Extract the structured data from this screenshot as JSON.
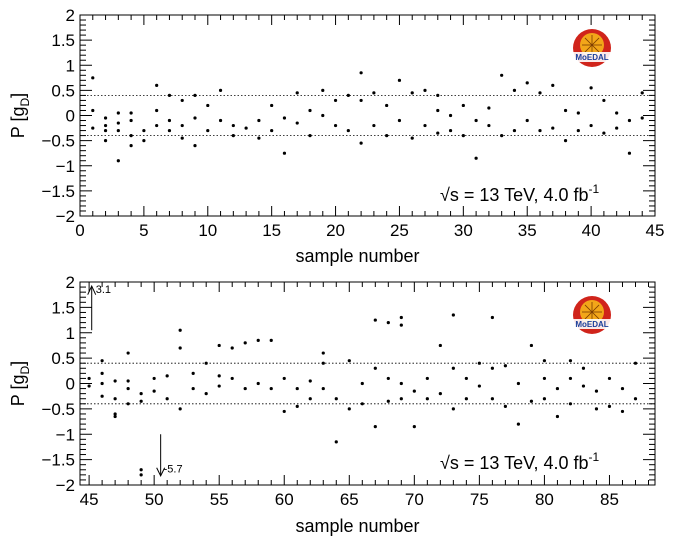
{
  "chart_data": [
    {
      "type": "scatter",
      "panel": "top",
      "xlabel": "sample number",
      "ylabel_main": "P [g",
      "ylabel_sub": "D",
      "ylabel_close": "]",
      "xlim": [
        0,
        45
      ],
      "ylim": [
        -2,
        2
      ],
      "xticks": [
        0,
        5,
        10,
        15,
        20,
        25,
        30,
        35,
        40,
        45
      ],
      "yticks": [
        -2,
        -1.5,
        -1,
        -0.5,
        0,
        0.5,
        1,
        1.5,
        2
      ],
      "ytick_labels": [
        "−2",
        "−1.5",
        "−1",
        "−0.5",
        "0",
        "0.5",
        "1",
        "1.5",
        "2"
      ],
      "reference_lines": [
        0.4,
        -0.4
      ],
      "annotation": {
        "sqrt": "√",
        "s_text": "s = 13 TeV, 4.0 fb",
        "sup": "-1"
      },
      "logo_text": "MoEDAL",
      "points": [
        [
          1,
          0.75
        ],
        [
          1,
          0.1
        ],
        [
          1,
          -0.25
        ],
        [
          2,
          -0.05
        ],
        [
          2,
          -0.3
        ],
        [
          2,
          -0.5
        ],
        [
          2,
          -0.2
        ],
        [
          3,
          0.05
        ],
        [
          3,
          -0.15
        ],
        [
          3,
          -0.3
        ],
        [
          3,
          -0.9
        ],
        [
          4,
          0.05
        ],
        [
          4,
          -0.1
        ],
        [
          4,
          -0.4
        ],
        [
          4,
          -0.6
        ],
        [
          5,
          -0.3
        ],
        [
          5,
          -0.5
        ],
        [
          6,
          0.6
        ],
        [
          6,
          0.1
        ],
        [
          6,
          -0.2
        ],
        [
          7,
          0.4
        ],
        [
          7,
          -0.1
        ],
        [
          7,
          -0.3
        ],
        [
          8,
          0.3
        ],
        [
          8,
          -0.2
        ],
        [
          8,
          -0.45
        ],
        [
          9,
          0.4
        ],
        [
          9,
          -0.05
        ],
        [
          9,
          -0.6
        ],
        [
          10,
          0.2
        ],
        [
          10,
          -0.3
        ],
        [
          11,
          0.5
        ],
        [
          11,
          -0.1
        ],
        [
          12,
          -0.2
        ],
        [
          12,
          -0.4
        ],
        [
          13,
          -0.25
        ],
        [
          14,
          -0.1
        ],
        [
          14,
          -0.45
        ],
        [
          15,
          0.2
        ],
        [
          15,
          -0.3
        ],
        [
          16,
          -0.05
        ],
        [
          16,
          -0.75
        ],
        [
          17,
          0.45
        ],
        [
          17,
          -0.15
        ],
        [
          18,
          0.1
        ],
        [
          18,
          -0.4
        ],
        [
          19,
          0.5
        ],
        [
          19,
          0.0
        ],
        [
          20,
          0.3
        ],
        [
          20,
          -0.2
        ],
        [
          21,
          0.4
        ],
        [
          21,
          -0.3
        ],
        [
          22,
          0.85
        ],
        [
          22,
          0.3
        ],
        [
          22,
          -0.55
        ],
        [
          23,
          0.45
        ],
        [
          23,
          -0.2
        ],
        [
          24,
          0.2
        ],
        [
          24,
          -0.4
        ],
        [
          25,
          0.7
        ],
        [
          25,
          -0.1
        ],
        [
          26,
          0.45
        ],
        [
          26,
          -0.45
        ],
        [
          27,
          0.5
        ],
        [
          27,
          -0.2
        ],
        [
          28,
          0.4
        ],
        [
          28,
          0.1
        ],
        [
          28,
          -0.35
        ],
        [
          29,
          0.0
        ],
        [
          29,
          -0.3
        ],
        [
          30,
          0.2
        ],
        [
          30,
          -0.4
        ],
        [
          31,
          -0.1
        ],
        [
          31,
          -0.85
        ],
        [
          32,
          0.15
        ],
        [
          32,
          -0.2
        ],
        [
          33,
          0.8
        ],
        [
          33,
          -0.4
        ],
        [
          34,
          0.5
        ],
        [
          34,
          -0.3
        ],
        [
          35,
          0.65
        ],
        [
          35,
          -0.1
        ],
        [
          36,
          0.45
        ],
        [
          36,
          -0.3
        ],
        [
          37,
          0.6
        ],
        [
          37,
          -0.25
        ],
        [
          38,
          0.1
        ],
        [
          38,
          -0.5
        ],
        [
          39,
          0.05
        ],
        [
          39,
          -0.3
        ],
        [
          40,
          0.55
        ],
        [
          40,
          -0.2
        ],
        [
          41,
          0.3
        ],
        [
          41,
          -0.35
        ],
        [
          42,
          0.05
        ],
        [
          42,
          -0.25
        ],
        [
          43,
          -0.1
        ],
        [
          43,
          -0.75
        ],
        [
          44,
          0.45
        ],
        [
          44,
          -0.05
        ]
      ]
    },
    {
      "type": "scatter",
      "panel": "bottom",
      "xlabel": "sample number",
      "ylabel_main": "P [g",
      "ylabel_sub": "D",
      "ylabel_close": "]",
      "xlim": [
        44.3,
        88.5
      ],
      "ylim": [
        -2,
        2
      ],
      "xticks": [
        45,
        50,
        55,
        60,
        65,
        70,
        75,
        80,
        85
      ],
      "yticks": [
        -2,
        -1.5,
        -1,
        -0.5,
        0,
        0.5,
        1,
        1.5,
        2
      ],
      "ytick_labels": [
        "−2",
        "−1.5",
        "−1",
        "−0.5",
        "0",
        "0.5",
        "1",
        "1.5",
        "2"
      ],
      "reference_lines": [
        0.4,
        -0.4
      ],
      "annotation": {
        "sqrt": "√",
        "s_text": "s = 13 TeV, 4.0 fb",
        "sup": "-1"
      },
      "logo_text": "MoEDAL",
      "arrow_up": {
        "x": 45.2,
        "label": "3.1"
      },
      "arrow_down": {
        "x": 50.5,
        "label": "-5.7"
      },
      "points": [
        [
          45,
          0.1
        ],
        [
          45,
          -0.05
        ],
        [
          46,
          0.45
        ],
        [
          46,
          0.2
        ],
        [
          46,
          0.0
        ],
        [
          46,
          -0.25
        ],
        [
          47,
          0.05
        ],
        [
          47,
          -0.3
        ],
        [
          47,
          -0.6
        ],
        [
          47,
          -0.65
        ],
        [
          48,
          0.05
        ],
        [
          48,
          -0.1
        ],
        [
          48,
          -0.4
        ],
        [
          48,
          0.6
        ],
        [
          49,
          -0.2
        ],
        [
          49,
          -0.35
        ],
        [
          49,
          -1.7
        ],
        [
          49,
          -1.8
        ],
        [
          50,
          0.1
        ],
        [
          50,
          -0.15
        ],
        [
          51,
          0.15
        ],
        [
          51,
          -0.3
        ],
        [
          52,
          1.05
        ],
        [
          52,
          0.7
        ],
        [
          52,
          -0.5
        ],
        [
          53,
          0.2
        ],
        [
          53,
          -0.1
        ],
        [
          54,
          0.4
        ],
        [
          54,
          -0.2
        ],
        [
          55,
          0.75
        ],
        [
          55,
          0.15
        ],
        [
          55,
          -0.05
        ],
        [
          56,
          0.7
        ],
        [
          56,
          0.1
        ],
        [
          57,
          0.8
        ],
        [
          57,
          -0.1
        ],
        [
          58,
          0.85
        ],
        [
          58,
          0.0
        ],
        [
          59,
          0.85
        ],
        [
          59,
          -0.1
        ],
        [
          60,
          0.1
        ],
        [
          60,
          -0.55
        ],
        [
          61,
          -0.1
        ],
        [
          61,
          -0.45
        ],
        [
          62,
          0.05
        ],
        [
          62,
          -0.3
        ],
        [
          63,
          0.6
        ],
        [
          63,
          0.4
        ],
        [
          63,
          -0.1
        ],
        [
          64,
          -1.15
        ],
        [
          64,
          -0.3
        ],
        [
          65,
          0.45
        ],
        [
          65,
          -0.5
        ],
        [
          66,
          0.0
        ],
        [
          66,
          -0.4
        ],
        [
          67,
          1.25
        ],
        [
          67,
          0.3
        ],
        [
          67,
          -0.85
        ],
        [
          68,
          1.2
        ],
        [
          68,
          0.1
        ],
        [
          68,
          -0.35
        ],
        [
          69,
          1.3
        ],
        [
          69,
          1.15
        ],
        [
          69,
          0.0
        ],
        [
          69,
          -0.3
        ],
        [
          70,
          -0.15
        ],
        [
          70,
          -0.85
        ],
        [
          71,
          0.1
        ],
        [
          71,
          -0.3
        ],
        [
          72,
          0.75
        ],
        [
          72,
          -0.2
        ],
        [
          73,
          1.35
        ],
        [
          73,
          0.3
        ],
        [
          73,
          -0.5
        ],
        [
          74,
          0.1
        ],
        [
          74,
          -0.3
        ],
        [
          75,
          0.4
        ],
        [
          75,
          -0.05
        ],
        [
          76,
          1.3
        ],
        [
          76,
          0.3
        ],
        [
          76,
          -0.3
        ],
        [
          77,
          0.35
        ],
        [
          77,
          -0.45
        ],
        [
          78,
          0.0
        ],
        [
          78,
          -0.8
        ],
        [
          79,
          0.75
        ],
        [
          79,
          -0.35
        ],
        [
          80,
          0.45
        ],
        [
          80,
          0.1
        ],
        [
          80,
          -0.3
        ],
        [
          81,
          -0.1
        ],
        [
          81,
          -0.65
        ],
        [
          82,
          0.45
        ],
        [
          82,
          0.1
        ],
        [
          82,
          -0.4
        ],
        [
          83,
          0.3
        ],
        [
          83,
          -0.05
        ],
        [
          84,
          -0.15
        ],
        [
          84,
          -0.5
        ],
        [
          85,
          0.1
        ],
        [
          85,
          -0.45
        ],
        [
          86,
          -0.1
        ],
        [
          86,
          -0.55
        ],
        [
          87,
          0.4
        ],
        [
          87,
          -0.3
        ]
      ]
    }
  ]
}
